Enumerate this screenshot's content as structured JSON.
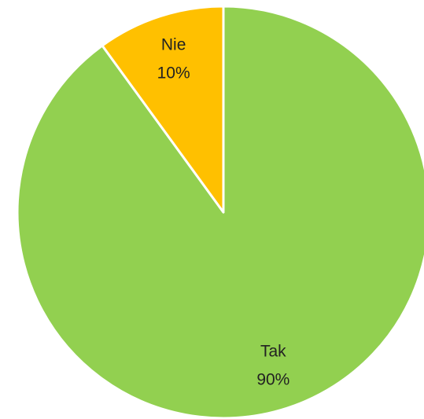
{
  "chart_data": {
    "type": "pie",
    "categories": [
      "Tak",
      "Nie"
    ],
    "values": [
      90,
      10
    ],
    "value_labels": [
      "90%",
      "10%"
    ],
    "colors": [
      "#92d050",
      "#ffc000"
    ]
  }
}
